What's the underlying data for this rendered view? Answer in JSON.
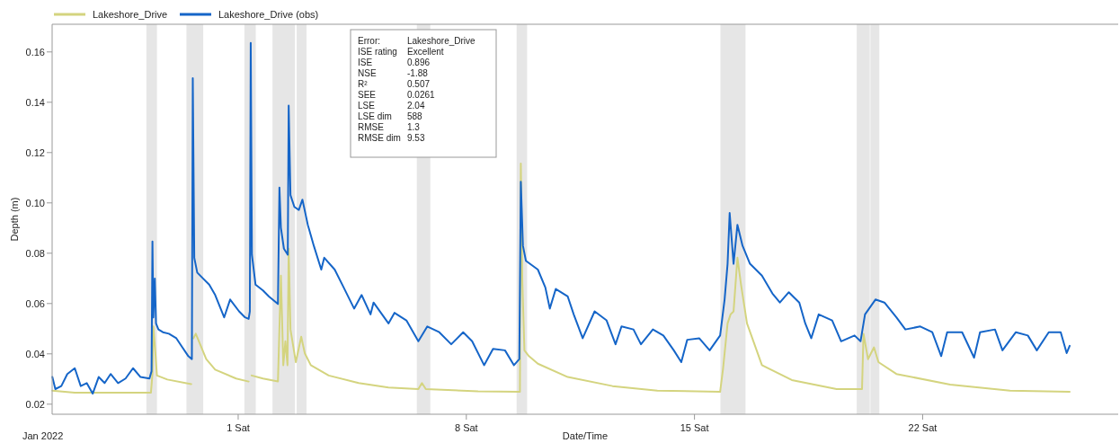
{
  "chart_data": {
    "type": "line",
    "xlabel": "Date/Time",
    "ylabel": "Depth (m)",
    "xlim": [
      "2021-12-26T07:00",
      "2022-01-28T00:00"
    ],
    "xticks": [
      {
        "value": "2022-01-01",
        "label": "1 Sat"
      },
      {
        "value": "2022-01-08",
        "label": "8 Sat"
      },
      {
        "value": "2022-01-15",
        "label": "15 Sat"
      },
      {
        "value": "2022-01-22",
        "label": "22 Sat"
      }
    ],
    "ylim": [
      0.016,
      0.171
    ],
    "yticks": [
      {
        "value": 0.02,
        "label": "0.02"
      },
      {
        "value": 0.04,
        "label": "0.04"
      },
      {
        "value": 0.06,
        "label": "0.06"
      },
      {
        "value": 0.08,
        "label": "0.08"
      },
      {
        "value": 0.1,
        "label": "0.10"
      },
      {
        "value": 0.12,
        "label": "0.12"
      },
      {
        "value": 0.14,
        "label": "0.14"
      },
      {
        "value": 0.16,
        "label": "0.16"
      }
    ],
    "grid": false,
    "legend": "top left",
    "line_style": "solid",
    "marker": "none",
    "bands": [
      {
        "axis": "x",
        "from": "2021-12-29T04:25",
        "to": "2021-12-29T12:10",
        "color": "#e6e6e6"
      },
      {
        "axis": "x",
        "from": "2021-12-30T09:55",
        "to": "2021-12-30T22:15",
        "color": "#e6e6e6"
      },
      {
        "axis": "x",
        "from": "2022-01-01T04:35",
        "to": "2022-01-01T12:55",
        "color": "#e6e6e6"
      },
      {
        "axis": "x",
        "from": "2022-01-02T01:15",
        "to": "2022-01-02T17:50",
        "color": "#e6e6e6"
      },
      {
        "axis": "x",
        "from": "2022-01-02T19:05",
        "to": "2022-01-03T02:20",
        "color": "#e6e6e6"
      },
      {
        "axis": "x",
        "from": "2022-01-06T11:33",
        "to": "2022-01-06T21:27",
        "color": "#e6e6e6"
      },
      {
        "axis": "x",
        "from": "2022-01-09T13:00",
        "to": "2022-01-09T20:45",
        "color": "#e6e6e6"
      },
      {
        "axis": "x",
        "from": "2022-01-15T19:06",
        "to": "2022-01-16T13:35",
        "color": "#e6e6e6"
      },
      {
        "axis": "x",
        "from": "2022-01-19T23:27",
        "to": "2022-01-20T09:06",
        "color": "#e6e6e6"
      },
      {
        "axis": "x",
        "from": "2022-01-20T09:32",
        "to": "2022-01-20T16:08",
        "color": "#e6e6e6"
      }
    ],
    "annotations": [
      "Jan 2022",
      "Error:",
      "Lakeshore_Drive",
      "ISE rating",
      "Excellent",
      "ISE",
      "0.896",
      "NSE",
      "-1.88",
      "R²",
      "0.507",
      "SEE",
      "0.0261",
      "LSE",
      "2.04",
      "LSE dim",
      "588",
      "RMSE",
      "1.3",
      "RMSE dim",
      "9.53"
    ],
    "series": [
      {
        "name": "Lakeshore_Drive",
        "color": "#d4d47f",
        "x": [
          "2021-12-26T07:10",
          "2021-12-26T23:40",
          "2021-12-29T07:46",
          "2021-12-29T08:52",
          "2021-12-29T09:31",
          "2021-12-29T11:04",
          "2021-12-29T12:10",
          "2021-12-29T19:52",
          "2021-12-30T13:28",
          "2021-12-30T14:07",
          "2021-12-30T15:00",
          "2021-12-30T16:46",
          "2021-12-31T00:28",
          "2021-12-31T07:04",
          "2021-12-31T22:28",
          "2022-01-01T07:42",
          "2022-01-01T08:35",
          "2022-01-01T09:54",
          "2022-01-01T18:16",
          "2022-01-02T05:16",
          "2022-01-02T07:28",
          "2022-01-02T09:13",
          "2022-01-02T10:46",
          "2022-01-02T12:18",
          "2022-01-02T13:11",
          "2022-01-02T14:30",
          "2022-01-02T18:28",
          "2022-01-02T22:25",
          "2022-01-03T01:04",
          "2022-01-03T05:28",
          "2022-01-03T18:40",
          "2022-01-04T16:40",
          "2022-01-05T14:40",
          "2022-01-06T12:40",
          "2022-01-06T15:18",
          "2022-01-06T18:10",
          "2022-01-08T08:40",
          "2022-01-09T15:28",
          "2022-01-09T16:07",
          "2022-01-09T17:13",
          "2022-01-09T18:46",
          "2022-01-09T22:04",
          "2022-01-10T04:40",
          "2022-01-11T02:40",
          "2022-01-12T11:40",
          "2022-01-13T20:40",
          "2022-01-15T18:52",
          "2022-01-15T21:04",
          "2022-01-16T00:22",
          "2022-01-16T02:34",
          "2022-01-16T04:46",
          "2022-01-16T07:37",
          "2022-01-16T10:16",
          "2022-01-16T14:40",
          "2022-01-17T01:40",
          "2022-01-17T23:40",
          "2022-01-19T08:40",
          "2022-01-20T03:22",
          "2022-01-20T04:28",
          "2022-01-20T07:46",
          "2022-01-20T12:10",
          "2022-01-20T15:28",
          "2022-01-21T04:40",
          "2022-01-22T20:16",
          "2022-01-24T16:16",
          "2022-01-26T12:16"
        ],
        "values": [
          0.0254,
          0.0246,
          0.0246,
          0.032,
          0.0509,
          0.0402,
          0.0314,
          0.0298,
          0.028,
          null,
          0.0462,
          0.048,
          0.0379,
          0.0337,
          0.0302,
          0.029,
          null,
          0.0314,
          0.0302,
          0.029,
          0.0711,
          0.0355,
          0.045,
          0.0355,
          0.0818,
          0.0497,
          0.0367,
          0.0468,
          0.0402,
          0.0355,
          0.0314,
          0.0284,
          0.0266,
          0.026,
          0.0284,
          0.026,
          0.0251,
          0.0249,
          0.1156,
          0.0687,
          0.0414,
          0.0391,
          0.0361,
          0.0308,
          0.0272,
          0.0254,
          0.0249,
          0.0343,
          0.0521,
          0.0557,
          0.0569,
          0.0782,
          0.0675,
          0.0521,
          0.0355,
          0.0296,
          0.026,
          0.026,
          0.048,
          0.0379,
          0.0426,
          0.0367,
          0.032,
          0.0278,
          0.0254,
          0.0249
        ]
      },
      {
        "name": "Lakeshore_Drive (obs)",
        "color": "#1565c8",
        "x": [
          "2021-12-26T07:10",
          "2021-12-26T09:22",
          "2021-12-26T13:46",
          "2021-12-26T18:10",
          "2021-12-26T23:40",
          "2021-12-27T04:04",
          "2021-12-27T08:28",
          "2021-12-27T12:52",
          "2021-12-27T17:16",
          "2021-12-27T21:40",
          "2021-12-28T02:04",
          "2021-12-28T07:34",
          "2021-12-28T13:04",
          "2021-12-28T18:34",
          "2021-12-29T00:04",
          "2021-12-29T06:40",
          "2021-12-29T08:12",
          "2021-12-29T08:52",
          "2021-12-29T09:31",
          "2021-12-29T10:37",
          "2021-12-29T11:30",
          "2021-12-29T13:16",
          "2021-12-29T16:34",
          "2021-12-29T20:58",
          "2021-12-30T02:28",
          "2021-12-30T06:52",
          "2021-12-30T11:16",
          "2021-12-30T13:54",
          "2021-12-30T14:34",
          "2021-12-30T15:40",
          "2021-12-30T17:52",
          "2021-12-30T22:16",
          "2021-12-31T02:40",
          "2021-12-31T07:04",
          "2021-12-31T13:40",
          "2021-12-31T18:04",
          "2022-01-01T00:40",
          "2022-01-01T05:04",
          "2022-01-01T07:42",
          "2022-01-01T08:35",
          "2022-01-01T09:14",
          "2022-01-01T10:07",
          "2022-01-01T12:46",
          "2022-01-01T18:16",
          "2022-01-01T22:40",
          "2022-01-02T05:16",
          "2022-01-02T06:22",
          "2022-01-02T07:28",
          "2022-01-02T09:40",
          "2022-01-02T12:31",
          "2022-01-02T13:11",
          "2022-01-02T14:30",
          "2022-01-02T17:22",
          "2022-01-02T20:40",
          "2022-01-02T23:18",
          "2022-01-03T03:16",
          "2022-01-03T07:40",
          "2022-01-03T13:10",
          "2022-01-03T15:22",
          "2022-01-03T23:04",
          "2022-01-04T05:40",
          "2022-01-04T13:22",
          "2022-01-04T18:52",
          "2022-01-05T01:28",
          "2022-01-05T03:40",
          "2022-01-05T14:40",
          "2022-01-05T19:04",
          "2022-01-06T03:52",
          "2022-01-06T12:40",
          "2022-01-06T19:16",
          "2022-01-07T04:04",
          "2022-01-07T12:52",
          "2022-01-07T21:40",
          "2022-01-08T04:16",
          "2022-01-08T13:04",
          "2022-01-08T19:40",
          "2022-01-09T04:28",
          "2022-01-09T11:04",
          "2022-01-09T15:01",
          "2022-01-09T16:07",
          "2022-01-09T17:40",
          "2022-01-09T19:52",
          "2022-01-10T04:40",
          "2022-01-10T10:10",
          "2022-01-10T13:28",
          "2022-01-10T17:52",
          "2022-01-11T02:40",
          "2022-01-11T07:04",
          "2022-01-11T13:40",
          "2022-01-11T22:28",
          "2022-01-12T07:16",
          "2022-01-12T13:52",
          "2022-01-12T18:16",
          "2022-01-13T03:04",
          "2022-01-13T08:34",
          "2022-01-13T17:22",
          "2022-01-14T01:04",
          "2022-01-14T08:46",
          "2022-01-14T14:16",
          "2022-01-14T18:40",
          "2022-01-15T03:28",
          "2022-01-15T11:10",
          "2022-01-15T18:52",
          "2022-01-15T22:10",
          "2022-01-16T00:22",
          "2022-01-16T01:54",
          "2022-01-16T04:46",
          "2022-01-16T07:37",
          "2022-01-16T11:22",
          "2022-01-16T16:52",
          "2022-01-17T01:40",
          "2022-01-17T09:22",
          "2022-01-17T14:52",
          "2022-01-17T21:28",
          "2022-01-18T05:10",
          "2022-01-18T09:34",
          "2022-01-18T13:58",
          "2022-01-18T19:28",
          "2022-01-19T05:22",
          "2022-01-19T11:58",
          "2022-01-19T21:52",
          "2022-01-20T02:16",
          "2022-01-20T05:34",
          "2022-01-20T13:16",
          "2022-01-20T19:52",
          "2022-01-21T04:40",
          "2022-01-21T11:16",
          "2022-01-21T22:16",
          "2022-01-22T07:04",
          "2022-01-22T13:40",
          "2022-01-22T18:04",
          "2022-01-23T05:04",
          "2022-01-23T13:52",
          "2022-01-23T18:16",
          "2022-01-24T05:16",
          "2022-01-24T10:46",
          "2022-01-24T20:40",
          "2022-01-25T05:28",
          "2022-01-25T12:04",
          "2022-01-25T20:52",
          "2022-01-26T05:40",
          "2022-01-26T10:04",
          "2022-01-26T12:16"
        ],
        "values": [
          0.0308,
          0.026,
          0.0272,
          0.032,
          0.0343,
          0.0272,
          0.0284,
          0.0242,
          0.0308,
          0.0284,
          0.032,
          0.0284,
          0.0302,
          0.0343,
          0.0308,
          0.0302,
          0.0331,
          0.0847,
          0.0545,
          0.0699,
          0.0521,
          0.0497,
          0.0486,
          0.048,
          0.0462,
          0.0426,
          0.0391,
          0.0379,
          0.1496,
          0.0782,
          0.0723,
          0.0699,
          0.0675,
          0.0634,
          0.0545,
          0.0616,
          0.0569,
          0.0545,
          0.0539,
          0.0569,
          0.1636,
          0.0794,
          0.0675,
          0.0652,
          0.0628,
          0.0598,
          0.1061,
          0.0901,
          0.0818,
          0.0794,
          0.1387,
          0.1031,
          0.0984,
          0.0972,
          0.1013,
          0.0913,
          0.083,
          0.0735,
          0.0782,
          0.0735,
          0.0664,
          0.058,
          0.0634,
          0.0557,
          0.0604,
          0.0521,
          0.0563,
          0.0533,
          0.045,
          0.0509,
          0.0486,
          0.0438,
          0.0486,
          0.045,
          0.0355,
          0.042,
          0.0414,
          0.0355,
          0.0379,
          0.1084,
          0.083,
          0.077,
          0.0735,
          0.0664,
          0.058,
          0.0658,
          0.0628,
          0.0557,
          0.0462,
          0.0569,
          0.0533,
          0.0438,
          0.0509,
          0.0497,
          0.0438,
          0.0497,
          0.0473,
          0.0414,
          0.0367,
          0.0456,
          0.0462,
          0.0414,
          0.0473,
          0.0616,
          0.0758,
          0.096,
          0.0758,
          0.0913,
          0.083,
          0.0758,
          0.0711,
          0.064,
          0.0604,
          0.0645,
          0.0604,
          0.0521,
          0.0462,
          0.0557,
          0.0533,
          0.045,
          0.0473,
          0.045,
          0.0557,
          0.0616,
          0.0604,
          0.0545,
          0.0497,
          0.0509,
          0.0486,
          0.0391,
          0.0486,
          0.0486,
          0.0385,
          0.0486,
          0.0497,
          0.0414,
          0.0486,
          0.0473,
          0.0414,
          0.0486,
          0.0486,
          0.0403,
          0.0432
        ]
      }
    ]
  }
}
